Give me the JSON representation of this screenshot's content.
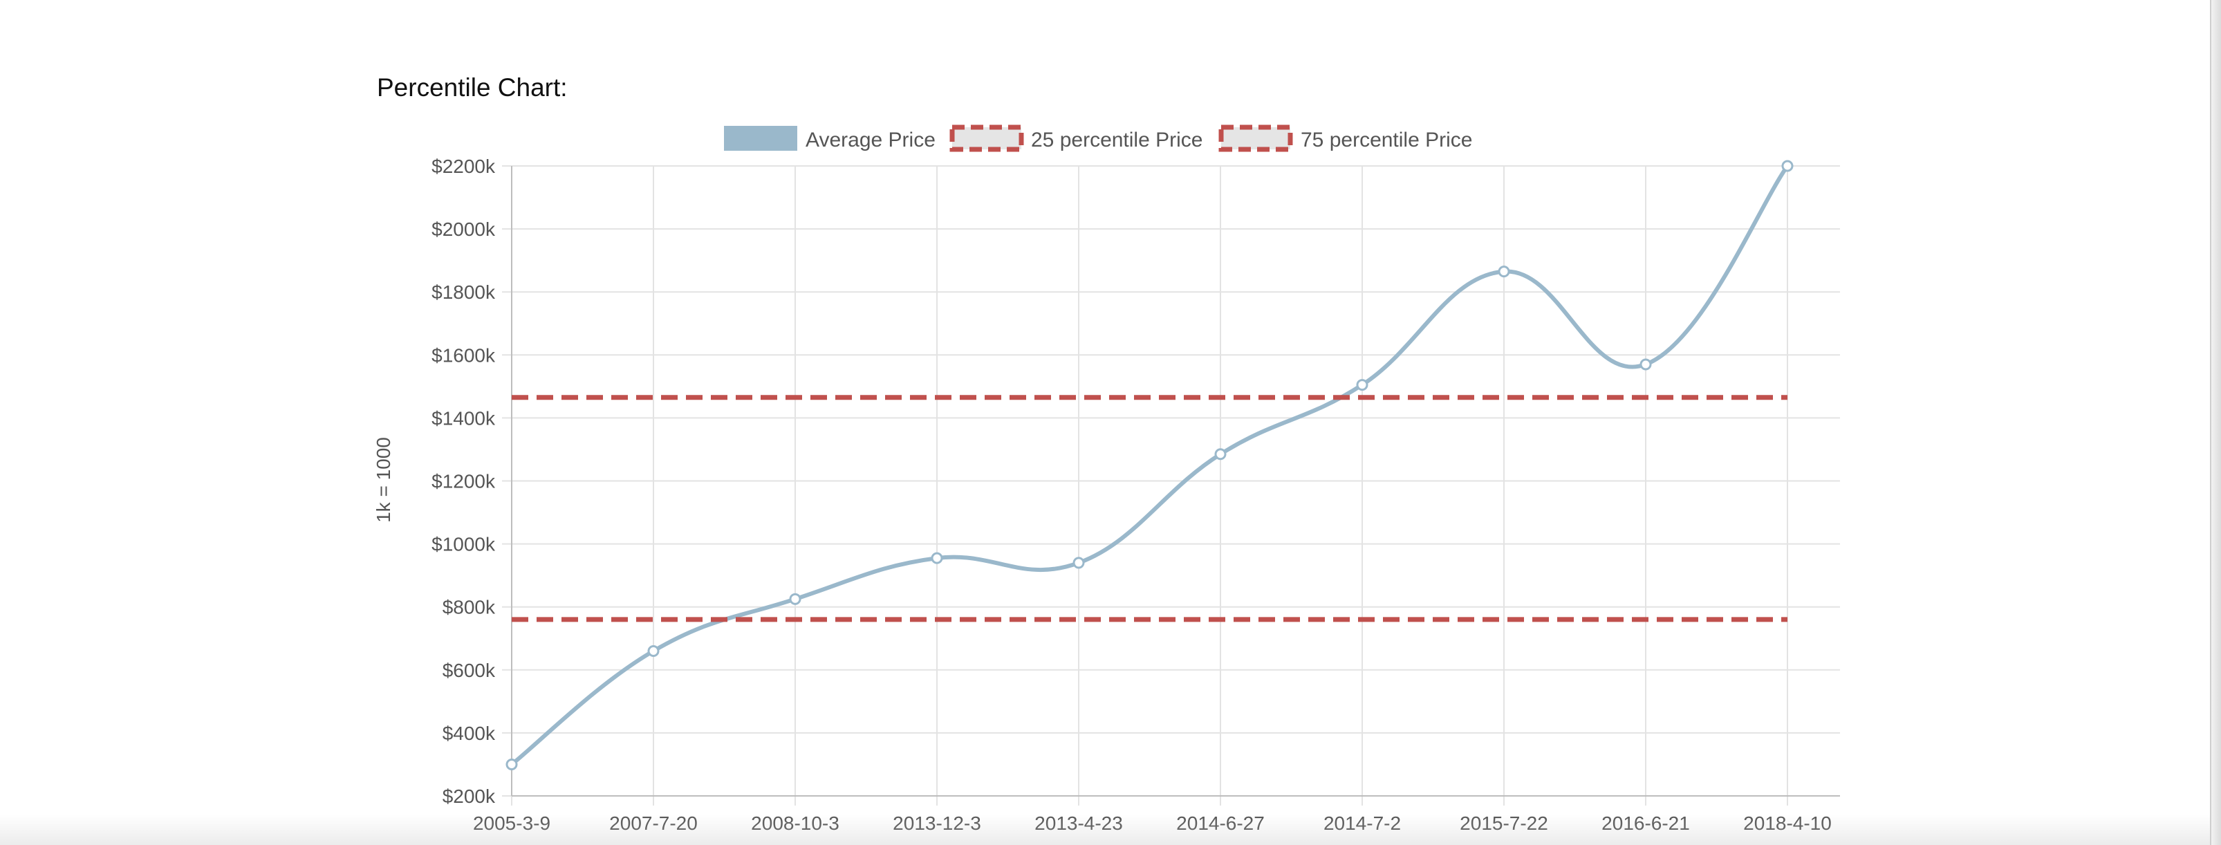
{
  "page": {
    "heading": "Percentile Chart:"
  },
  "chart_data": {
    "type": "line",
    "title": "",
    "xlabel": "",
    "ylabel": "1k = 1000",
    "categories": [
      "2005-3-9",
      "2007-7-20",
      "2008-10-3",
      "2013-12-3",
      "2013-4-23",
      "2014-6-27",
      "2014-7-2",
      "2015-7-22",
      "2016-6-21",
      "2018-4-10"
    ],
    "y_ticks": [
      200,
      400,
      600,
      800,
      1000,
      1200,
      1400,
      1600,
      1800,
      2000,
      2200
    ],
    "y_tick_labels": [
      "$200k",
      "$400k",
      "$600k",
      "$800k",
      "$1000k",
      "$1200k",
      "$1400k",
      "$1600k",
      "$1800k",
      "$2000k",
      "$2200k"
    ],
    "ylim": [
      200,
      2200
    ],
    "grid": true,
    "legend_position": "top-center",
    "series": [
      {
        "name": "Average Price",
        "style": "solid-smooth",
        "color": "#9ab8cb",
        "values": [
          300,
          660,
          825,
          955,
          940,
          1285,
          1505,
          1865,
          1570,
          2200
        ]
      },
      {
        "name": "25 percentile Price",
        "style": "dashed",
        "color": "#c0504d",
        "values": [
          760,
          760,
          760,
          760,
          760,
          760,
          760,
          760,
          760,
          760
        ]
      },
      {
        "name": "75 percentile Price",
        "style": "dashed",
        "color": "#c0504d",
        "values": [
          1465,
          1465,
          1465,
          1465,
          1465,
          1465,
          1465,
          1465,
          1465,
          1465
        ]
      }
    ]
  }
}
